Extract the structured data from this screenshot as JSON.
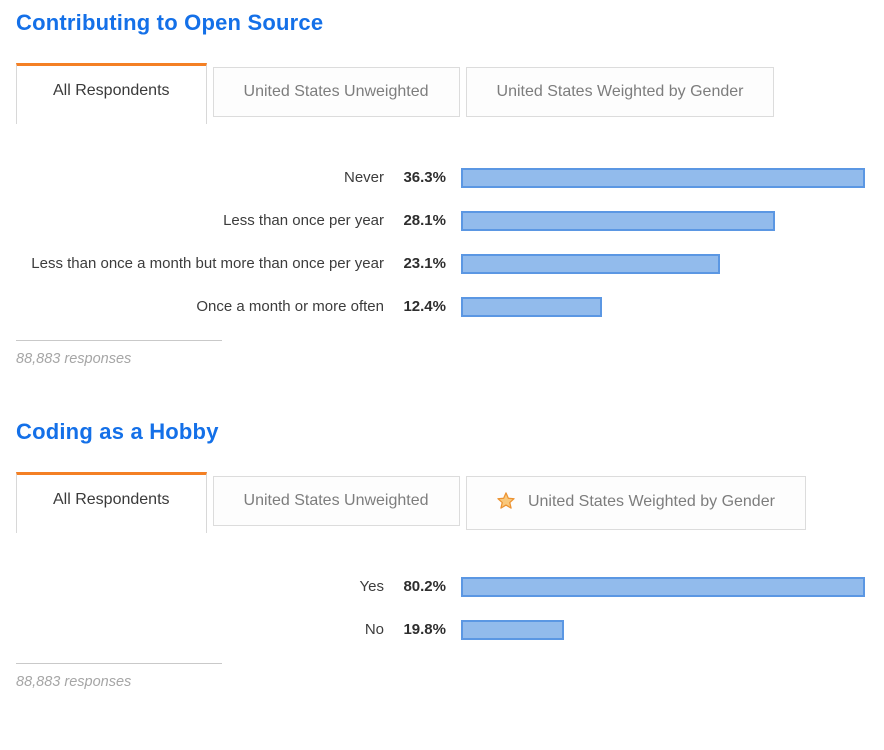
{
  "colors": {
    "title_blue": "#1470e8",
    "tab_active_accent": "#f48024",
    "bar_fill": "#92bbec",
    "bar_border": "#5b97e3",
    "star_orange": "#ec9332"
  },
  "chart_data": [
    {
      "type": "bar",
      "orientation": "horizontal",
      "title": "Contributing to Open Source",
      "categories": [
        "Never",
        "Less than once per year",
        "Less than once a month but more than once per year",
        "Once a month or more often"
      ],
      "values": [
        36.3,
        28.1,
        23.1,
        12.4
      ],
      "value_labels": [
        "36.3%",
        "28.1%",
        "23.1%",
        "12.4%"
      ],
      "bar_scale": "longest-bar-fills-track",
      "grid": false,
      "legend": "none",
      "responses": "88,883 responses"
    },
    {
      "type": "bar",
      "orientation": "horizontal",
      "title": "Coding as a Hobby",
      "categories": [
        "Yes",
        "No"
      ],
      "values": [
        80.2,
        19.8
      ],
      "value_labels": [
        "80.2%",
        "19.8%"
      ],
      "bar_scale": "longest-bar-fills-track",
      "grid": false,
      "legend": "none",
      "responses": "88,883 responses"
    }
  ],
  "sections": [
    {
      "tabs": [
        {
          "label": "All Respondents",
          "active": true,
          "starred": false
        },
        {
          "label": "United States Unweighted",
          "active": false,
          "starred": false
        },
        {
          "label": "United States Weighted by Gender",
          "active": false,
          "starred": false
        }
      ]
    },
    {
      "tabs": [
        {
          "label": "All Respondents",
          "active": true,
          "starred": false
        },
        {
          "label": "United States Unweighted",
          "active": false,
          "starred": false
        },
        {
          "label": "United States Weighted by Gender",
          "active": false,
          "starred": true
        }
      ]
    }
  ]
}
